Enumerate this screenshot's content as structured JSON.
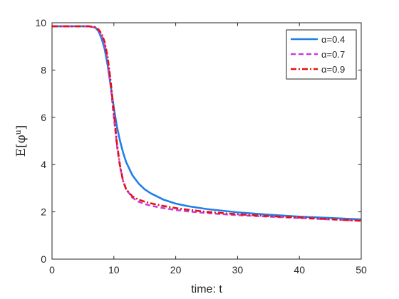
{
  "chart_data": {
    "type": "line",
    "xlabel": "time: t",
    "ylabel": "E[φ^u]",
    "xlim": [
      0,
      50
    ],
    "ylim": [
      0,
      10
    ],
    "xticks": [
      0,
      10,
      20,
      30,
      40,
      50
    ],
    "yticks": [
      0,
      2,
      4,
      6,
      8,
      10
    ],
    "grid": false,
    "legend_position": "top-right",
    "series": [
      {
        "name": "α=0.4",
        "color": "#1f7fe8",
        "style": "solid",
        "x": [
          0,
          2,
          4,
          6,
          7,
          7.5,
          8,
          8.5,
          9,
          9.5,
          10,
          10.5,
          11,
          11.5,
          12,
          13,
          14,
          15,
          16,
          18,
          20,
          22,
          25,
          30,
          35,
          40,
          45,
          50
        ],
        "y": [
          9.85,
          9.85,
          9.85,
          9.85,
          9.8,
          9.65,
          9.35,
          8.9,
          8.2,
          7.3,
          6.4,
          5.6,
          5.0,
          4.5,
          4.1,
          3.55,
          3.2,
          2.95,
          2.78,
          2.52,
          2.35,
          2.24,
          2.12,
          1.98,
          1.88,
          1.8,
          1.74,
          1.68
        ]
      },
      {
        "name": "α=0.7",
        "color": "#c83ee0",
        "style": "dashed",
        "x": [
          0,
          2,
          4,
          6,
          7,
          7.5,
          8,
          8.5,
          9,
          9.5,
          10,
          10.5,
          11,
          11.5,
          12,
          13,
          14,
          15,
          16,
          18,
          20,
          22,
          25,
          30,
          35,
          40,
          45,
          50
        ],
        "y": [
          9.85,
          9.85,
          9.85,
          9.85,
          9.8,
          9.7,
          9.5,
          9.1,
          8.4,
          7.3,
          6.0,
          4.8,
          3.9,
          3.3,
          2.95,
          2.6,
          2.43,
          2.33,
          2.26,
          2.16,
          2.08,
          2.02,
          1.95,
          1.86,
          1.8,
          1.74,
          1.68,
          1.63
        ]
      },
      {
        "name": "α=0.9",
        "color": "#e8100c",
        "style": "dashdot",
        "x": [
          0,
          2,
          4,
          6,
          7,
          7.5,
          8,
          8.5,
          9,
          9.5,
          10,
          10.5,
          11,
          11.5,
          12,
          13,
          14,
          15,
          16,
          18,
          20,
          22,
          25,
          30,
          35,
          40,
          45,
          50
        ],
        "y": [
          9.85,
          9.85,
          9.85,
          9.85,
          9.82,
          9.72,
          9.55,
          9.2,
          8.55,
          7.5,
          6.2,
          4.9,
          3.95,
          3.3,
          2.95,
          2.65,
          2.52,
          2.43,
          2.36,
          2.25,
          2.16,
          2.09,
          2.0,
          1.9,
          1.82,
          1.76,
          1.69,
          1.62
        ]
      }
    ]
  }
}
